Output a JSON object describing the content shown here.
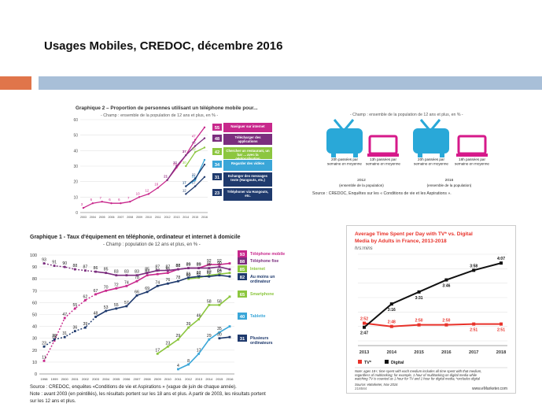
{
  "slide": {
    "title": "Usages Mobiles, CREDOC, décembre 2016"
  },
  "colors": {
    "accent_orange": "#e0754a",
    "accent_blue": "#a8bfd8",
    "magenta": "#c8288c",
    "purple": "#7b2e7e",
    "green": "#8cc63f",
    "cyan": "#3aa6d8",
    "navy": "#1f3a6d",
    "red": "#e8322a",
    "black": "#111111",
    "tv_cyan": "#29a8d8",
    "tv_pink": "#d6198a"
  },
  "chart_data": [
    {
      "id": "graphique2",
      "type": "line",
      "title": "Graphique 2 – Proportion de personnes utilisant un téléphone mobile pour...",
      "subtitle": "- Champ : ensemble de la population de 12 ans et plus, en % -",
      "ylim": [
        0,
        60
      ],
      "yticks": [
        0,
        10,
        20,
        30,
        40,
        50,
        60
      ],
      "categories": [
        "2003",
        "2004",
        "2005",
        "2006",
        "2007",
        "2008",
        "2009",
        "2010",
        "2011",
        "2012",
        "2013",
        "2014",
        "2015",
        "2016"
      ],
      "series": [
        {
          "name": "Naviguer sur internet",
          "color": "#c8288c",
          "values": [
            3,
            6,
            7,
            6,
            6,
            7,
            10,
            12,
            16,
            21,
            29,
            37,
            47,
            55
          ]
        },
        {
          "name": "Télécharger des applications",
          "color": "#7b2e7e",
          "values": [
            null,
            null,
            null,
            null,
            null,
            null,
            null,
            null,
            null,
            21,
            30,
            37,
            43,
            48
          ]
        },
        {
          "name": "Chercher un restaurant, un bar ... avec la géolocalisation",
          "color": "#8cc63f",
          "values": [
            null,
            null,
            null,
            null,
            null,
            null,
            null,
            null,
            null,
            null,
            null,
            30,
            39,
            42
          ]
        },
        {
          "name": "Regarder des vidéos",
          "color": "#3aa6d8",
          "values": [
            null,
            null,
            null,
            null,
            null,
            null,
            null,
            null,
            null,
            null,
            null,
            17,
            21,
            34
          ]
        },
        {
          "name": "Echanger des messages texte (Hangouts, etc.)",
          "color": "#1f3a6d",
          "values": [
            null,
            null,
            null,
            null,
            null,
            null,
            null,
            null,
            null,
            null,
            null,
            17,
            22,
            31
          ]
        },
        {
          "name": "Téléphoner via Hangouts, etc.",
          "color": "#1f3a6d",
          "values": [
            null,
            null,
            null,
            null,
            null,
            null,
            null,
            null,
            null,
            null,
            null,
            12,
            17,
            23
          ]
        }
      ],
      "end_badges": [
        "55",
        "48",
        "42",
        "34",
        "31",
        "23"
      ]
    },
    {
      "id": "tv-infographic",
      "type": "other",
      "subtitle": "- Champ : ensemble de la population de 12 ans et plus, en % -",
      "groups": [
        {
          "year": "2012",
          "caption": "(ensemble de la population)",
          "tv": "20h passées par semaine en moyenne",
          "mobile": "13h passées par semaine en moyenne"
        },
        {
          "year": "2016",
          "caption": "(ensemble de la population)",
          "tv": "20h passées par semaine en moyenne",
          "mobile": "18h passées par semaine en moyenne"
        }
      ],
      "source": "Source : CREDOC, Enquêtes sur les « Conditions de vie et les Aspirations »."
    },
    {
      "id": "graphique1",
      "type": "line",
      "title": "Graphique 1 - Taux d'équipement en téléphonie, ordinateur et internet à domicile",
      "subtitle": "- Champ : population de 12 ans et plus, en % -",
      "ylim": [
        0,
        100
      ],
      "yticks": [
        0,
        10,
        20,
        30,
        40,
        50,
        60,
        70,
        80,
        90,
        100
      ],
      "categories": [
        "1998",
        "1999",
        "2000",
        "2001",
        "2002",
        "2003",
        "2004",
        "2005",
        "2006",
        "2007",
        "2008",
        "2009",
        "2010",
        "2011",
        "2012",
        "2013",
        "2014",
        "2015",
        "2016"
      ],
      "series": [
        {
          "name": "Téléphone mobile",
          "color": "#c8288c",
          "label": "93",
          "values": [
            11,
            28,
            47,
            55,
            62,
            67,
            70,
            72,
            74,
            78,
            83,
            84,
            85,
            88,
            89,
            89,
            92,
            92,
            93
          ]
        },
        {
          "name": "Téléphone fixe",
          "color": "#7b2e7e",
          "label": "88",
          "values": [
            93,
            91,
            90,
            88,
            87,
            86,
            85,
            83,
            83,
            83,
            85,
            87,
            87,
            88,
            89,
            89,
            89,
            90,
            88
          ]
        },
        {
          "name": "Internet",
          "color": "#8cc63f",
          "label": "85",
          "values": [
            null,
            null,
            null,
            null,
            null,
            null,
            null,
            null,
            null,
            null,
            null,
            null,
            null,
            null,
            80,
            81,
            83,
            84,
            85
          ]
        },
        {
          "name": "Au moins un ordinateur",
          "color": "#1f3a6d",
          "label": "82",
          "values": [
            23,
            29,
            31,
            36,
            39,
            48,
            53,
            55,
            57,
            66,
            69,
            74,
            76,
            78,
            81,
            82,
            82,
            83,
            82
          ]
        },
        {
          "name": "Smartphone",
          "color": "#8cc63f",
          "label": "65",
          "values": [
            null,
            null,
            null,
            null,
            null,
            null,
            null,
            null,
            null,
            null,
            null,
            17,
            23,
            29,
            39,
            46,
            58,
            58,
            65
          ]
        },
        {
          "name": "Tablette",
          "color": "#3aa6d8",
          "label": "40",
          "values": [
            null,
            null,
            null,
            null,
            null,
            null,
            null,
            null,
            null,
            null,
            null,
            null,
            null,
            4,
            8,
            17,
            29,
            35,
            40
          ]
        },
        {
          "name": "Plusieurs ordinateurs",
          "color": "#1f3a6d",
          "label": "31",
          "values": [
            null,
            null,
            null,
            null,
            null,
            null,
            null,
            null,
            null,
            null,
            null,
            null,
            null,
            null,
            null,
            null,
            null,
            30,
            31
          ]
        }
      ],
      "source_line1": "Source : CREDOC, enquêtes «Conditions de vie et Aspirations » (vague de juin de chaque année).",
      "source_line2": "Note : avant 2003 (en pointillés), les résultats portent sur les 18 ans et plus. A partir de 2003, les résultats portent",
      "source_line3": "sur les 12 ans et plus."
    },
    {
      "id": "emarketer",
      "type": "line",
      "title": "Average Time Spent per Day with TV* vs. Digital Media by Adults in France, 2013-2018",
      "subtitle": "hrs:mins",
      "categories": [
        "2013",
        "2014",
        "2015",
        "2016",
        "2017",
        "2018"
      ],
      "series": [
        {
          "name": "TV*",
          "color": "#e8322a",
          "values": [
            "2:52",
            "2:48",
            "2:50",
            "2:50",
            "2:51",
            "2:51"
          ],
          "numeric": [
            2.867,
            2.8,
            2.833,
            2.833,
            2.85,
            2.85
          ]
        },
        {
          "name": "Digital",
          "color": "#111111",
          "values": [
            "2:47",
            "3:16",
            "3:31",
            "3:46",
            "3:58",
            "4:07"
          ],
          "numeric": [
            2.783,
            3.267,
            3.517,
            3.767,
            3.967,
            4.117
          ]
        }
      ],
      "note": "Note: ages 18+; time spent with each medium includes all time spent with that medium, regardless of multitasking; for example, 1 hour of multitasking on digital media while watching TV is counted as 1 hour for TV and 1 hour for digital media; *excludes digital",
      "source": "Source: eMarketer, Nov 2016",
      "code": "218584",
      "brand": "www.eMarketer.com"
    }
  ]
}
